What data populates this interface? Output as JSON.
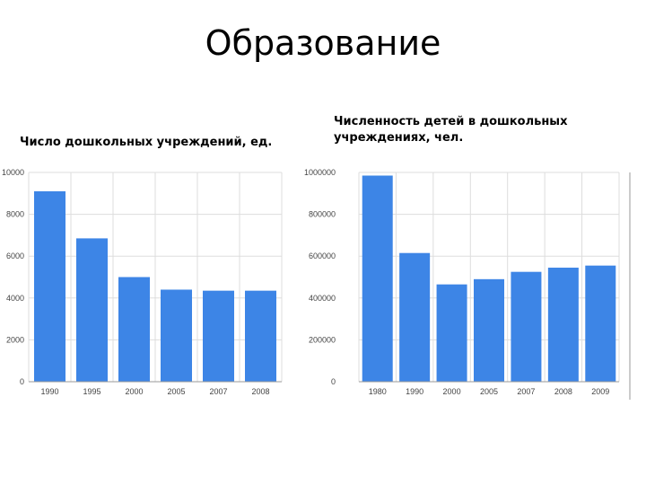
{
  "slide": {
    "title": "Образование"
  },
  "chart_data": [
    {
      "type": "bar",
      "title": "Число дошкольных учреждений, ед.",
      "categories": [
        "1990",
        "1995",
        "2000",
        "2005",
        "2007",
        "2008"
      ],
      "values": [
        9100,
        6850,
        5000,
        4400,
        4350,
        4350
      ],
      "yticks": [
        "10000",
        "8000",
        "6000",
        "4000",
        "2000",
        "0"
      ],
      "ylim": [
        0,
        10000
      ],
      "grid": true,
      "color": "#3d85e6"
    },
    {
      "type": "bar",
      "title": "Численность детей в дошкольных учреждениях, чел.",
      "categories": [
        "1980",
        "1990",
        "2000",
        "2005",
        "2007",
        "2008",
        "2009"
      ],
      "values": [
        985000,
        615000,
        465000,
        490000,
        525000,
        545000,
        555000
      ],
      "yticks": [
        "1000000",
        "800000",
        "600000",
        "400000",
        "200000",
        "0"
      ],
      "ylim": [
        0,
        1000000
      ],
      "grid": true,
      "color": "#3d85e6"
    }
  ]
}
